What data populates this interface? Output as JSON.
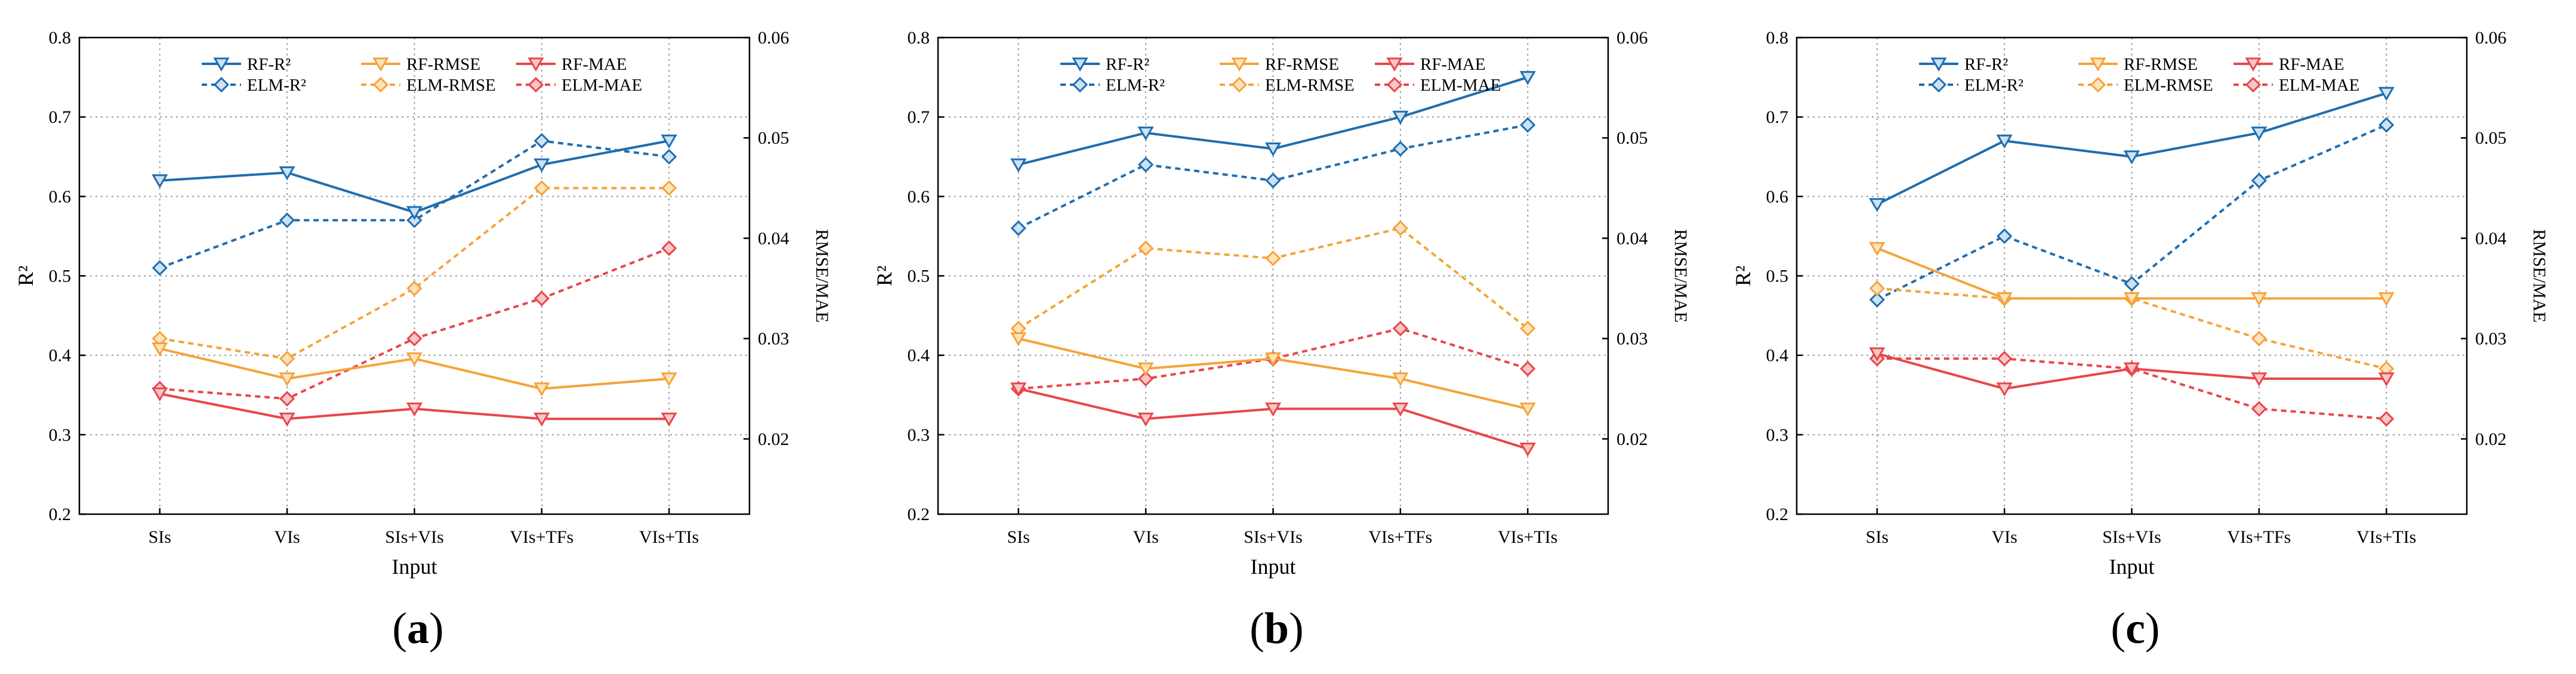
{
  "chart_data": [
    {
      "type": "line",
      "panel_label": "(a)",
      "panel_letter": "a",
      "categories": [
        "SIs",
        "VIs",
        "SIs+VIs",
        "VIs+TFs",
        "VIs+TIs"
      ],
      "xlabel": "Input",
      "ylabel_left": "R²",
      "ylabel_right": "RMSE/MAE",
      "ylim_left": [
        0.2,
        0.8
      ],
      "ylim_right": [
        0.0125,
        0.06
      ],
      "yticks_left": [
        "0.2",
        "0.3",
        "0.4",
        "0.5",
        "0.6",
        "0.7",
        "0.8"
      ],
      "yticks_right": [
        "0.02",
        "0.03",
        "0.04",
        "0.05",
        "0.06"
      ],
      "grid": true,
      "series": [
        {
          "name": "RF-R²",
          "axis": "left",
          "values": [
            0.62,
            0.63,
            0.58,
            0.64,
            0.67
          ],
          "color": "#1f6db0",
          "dashed": false,
          "marker": "triangle-down"
        },
        {
          "name": "RF-RMSE",
          "axis": "right",
          "values": [
            0.029,
            0.026,
            0.028,
            0.025,
            0.026
          ],
          "color": "#f5a33a",
          "dashed": false,
          "marker": "triangle-down"
        },
        {
          "name": "RF-MAE",
          "axis": "right",
          "values": [
            0.0245,
            0.022,
            0.023,
            0.022,
            0.022
          ],
          "color": "#e8464a",
          "dashed": false,
          "marker": "triangle-down"
        },
        {
          "name": "ELM-R²",
          "axis": "left",
          "values": [
            0.51,
            0.57,
            0.57,
            0.67,
            0.65
          ],
          "color": "#1f6db0",
          "dashed": true,
          "marker": "diamond"
        },
        {
          "name": "ELM-RMSE",
          "axis": "right",
          "values": [
            0.03,
            0.028,
            0.035,
            0.045,
            0.045
          ],
          "color": "#f5a33a",
          "dashed": true,
          "marker": "diamond"
        },
        {
          "name": "ELM-MAE",
          "axis": "right",
          "values": [
            0.025,
            0.024,
            0.03,
            0.034,
            0.039
          ],
          "color": "#e8464a",
          "dashed": true,
          "marker": "diamond"
        }
      ]
    },
    {
      "type": "line",
      "panel_label": "(b)",
      "panel_letter": "b",
      "categories": [
        "SIs",
        "VIs",
        "SIs+VIs",
        "VIs+TFs",
        "VIs+TIs"
      ],
      "xlabel": "Input",
      "ylabel_left": "R²",
      "ylabel_right": "RMSE/MAE",
      "ylim_left": [
        0.2,
        0.8
      ],
      "ylim_right": [
        0.0125,
        0.06
      ],
      "yticks_left": [
        "0.2",
        "0.3",
        "0.4",
        "0.5",
        "0.6",
        "0.7",
        "0.8"
      ],
      "yticks_right": [
        "0.02",
        "0.03",
        "0.04",
        "0.05",
        "0.06"
      ],
      "grid": true,
      "series": [
        {
          "name": "RF-R²",
          "axis": "left",
          "values": [
            0.64,
            0.68,
            0.66,
            0.7,
            0.75
          ],
          "color": "#1f6db0",
          "dashed": false,
          "marker": "triangle-down"
        },
        {
          "name": "RF-RMSE",
          "axis": "right",
          "values": [
            0.03,
            0.027,
            0.028,
            0.026,
            0.023
          ],
          "color": "#f5a33a",
          "dashed": false,
          "marker": "triangle-down"
        },
        {
          "name": "RF-MAE",
          "axis": "right",
          "values": [
            0.025,
            0.022,
            0.023,
            0.023,
            0.019
          ],
          "color": "#e8464a",
          "dashed": false,
          "marker": "triangle-down"
        },
        {
          "name": "ELM-R²",
          "axis": "left",
          "values": [
            0.56,
            0.64,
            0.62,
            0.66,
            0.69
          ],
          "color": "#1f6db0",
          "dashed": true,
          "marker": "diamond"
        },
        {
          "name": "ELM-RMSE",
          "axis": "right",
          "values": [
            0.031,
            0.039,
            0.038,
            0.041,
            0.031
          ],
          "color": "#f5a33a",
          "dashed": true,
          "marker": "diamond"
        },
        {
          "name": "ELM-MAE",
          "axis": "right",
          "values": [
            0.025,
            0.026,
            0.028,
            0.031,
            0.027
          ],
          "color": "#e8464a",
          "dashed": true,
          "marker": "diamond"
        }
      ]
    },
    {
      "type": "line",
      "panel_label": "(c)",
      "panel_letter": "c",
      "categories": [
        "SIs",
        "VIs",
        "SIs+VIs",
        "VIs+TFs",
        "VIs+TIs"
      ],
      "xlabel": "Input",
      "ylabel_left": "R²",
      "ylabel_right": "RMSE/MAE",
      "ylim_left": [
        0.2,
        0.8
      ],
      "ylim_right": [
        0.0125,
        0.06
      ],
      "yticks_left": [
        "0.2",
        "0.3",
        "0.4",
        "0.5",
        "0.6",
        "0.7",
        "0.8"
      ],
      "yticks_right": [
        "0.02",
        "0.03",
        "0.04",
        "0.05",
        "0.06"
      ],
      "grid": true,
      "series": [
        {
          "name": "RF-R²",
          "axis": "left",
          "values": [
            0.59,
            0.67,
            0.65,
            0.68,
            0.73
          ],
          "color": "#1f6db0",
          "dashed": false,
          "marker": "triangle-down"
        },
        {
          "name": "RF-RMSE",
          "axis": "right",
          "values": [
            0.039,
            0.034,
            0.034,
            0.034,
            0.034
          ],
          "color": "#f5a33a",
          "dashed": false,
          "marker": "triangle-down"
        },
        {
          "name": "RF-MAE",
          "axis": "right",
          "values": [
            0.0285,
            0.025,
            0.027,
            0.026,
            0.026
          ],
          "color": "#e8464a",
          "dashed": false,
          "marker": "triangle-down"
        },
        {
          "name": "ELM-R²",
          "axis": "left",
          "values": [
            0.47,
            0.55,
            0.49,
            0.62,
            0.69
          ],
          "color": "#1f6db0",
          "dashed": true,
          "marker": "diamond"
        },
        {
          "name": "ELM-RMSE",
          "axis": "right",
          "values": [
            0.035,
            0.034,
            0.034,
            0.03,
            0.027
          ],
          "color": "#f5a33a",
          "dashed": true,
          "marker": "diamond"
        },
        {
          "name": "ELM-MAE",
          "axis": "right",
          "values": [
            0.028,
            0.028,
            0.027,
            0.023,
            0.022
          ],
          "color": "#e8464a",
          "dashed": true,
          "marker": "diamond"
        }
      ]
    }
  ]
}
